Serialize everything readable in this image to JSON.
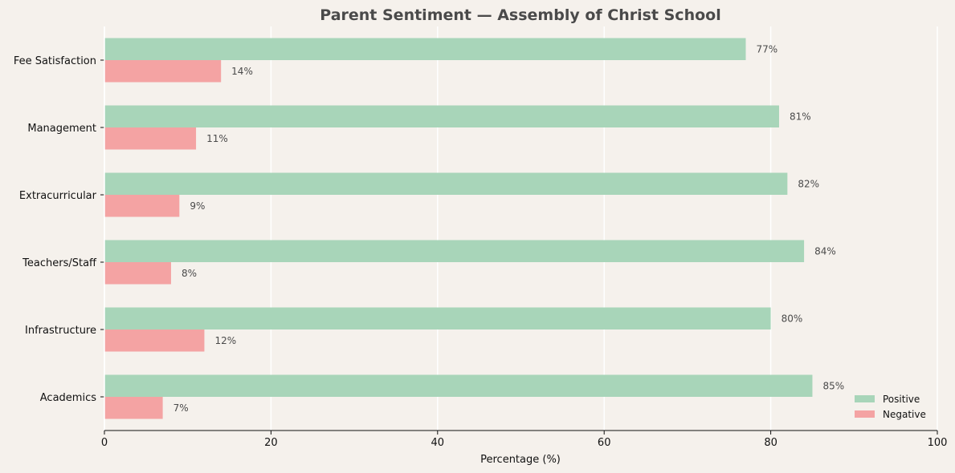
{
  "chart_data": {
    "type": "bar",
    "orientation": "horizontal",
    "title": "Parent Sentiment — Assembly of Christ School",
    "xlabel": "Percentage (%)",
    "ylabel": "",
    "xlim": [
      0,
      100
    ],
    "xticks": [
      "0",
      "20",
      "40",
      "60",
      "80",
      "100"
    ],
    "grid": "vertical",
    "legend_position": "bottom-right",
    "categories": [
      "Fee Satisfaction",
      "Management",
      "Extracurricular",
      "Teachers/Staff",
      "Infrastructure",
      "Academics"
    ],
    "series": [
      {
        "name": "Positive",
        "color": "#a8d5b9",
        "values": [
          77,
          81,
          82,
          84,
          80,
          85
        ],
        "labels": [
          "77%",
          "81%",
          "82%",
          "84%",
          "80%",
          "85%"
        ]
      },
      {
        "name": "Negative",
        "color": "#f4a3a3",
        "values": [
          14,
          11,
          9,
          8,
          12,
          7
        ],
        "labels": [
          "14%",
          "11%",
          "9%",
          "8%",
          "12%",
          "7%"
        ]
      }
    ]
  }
}
